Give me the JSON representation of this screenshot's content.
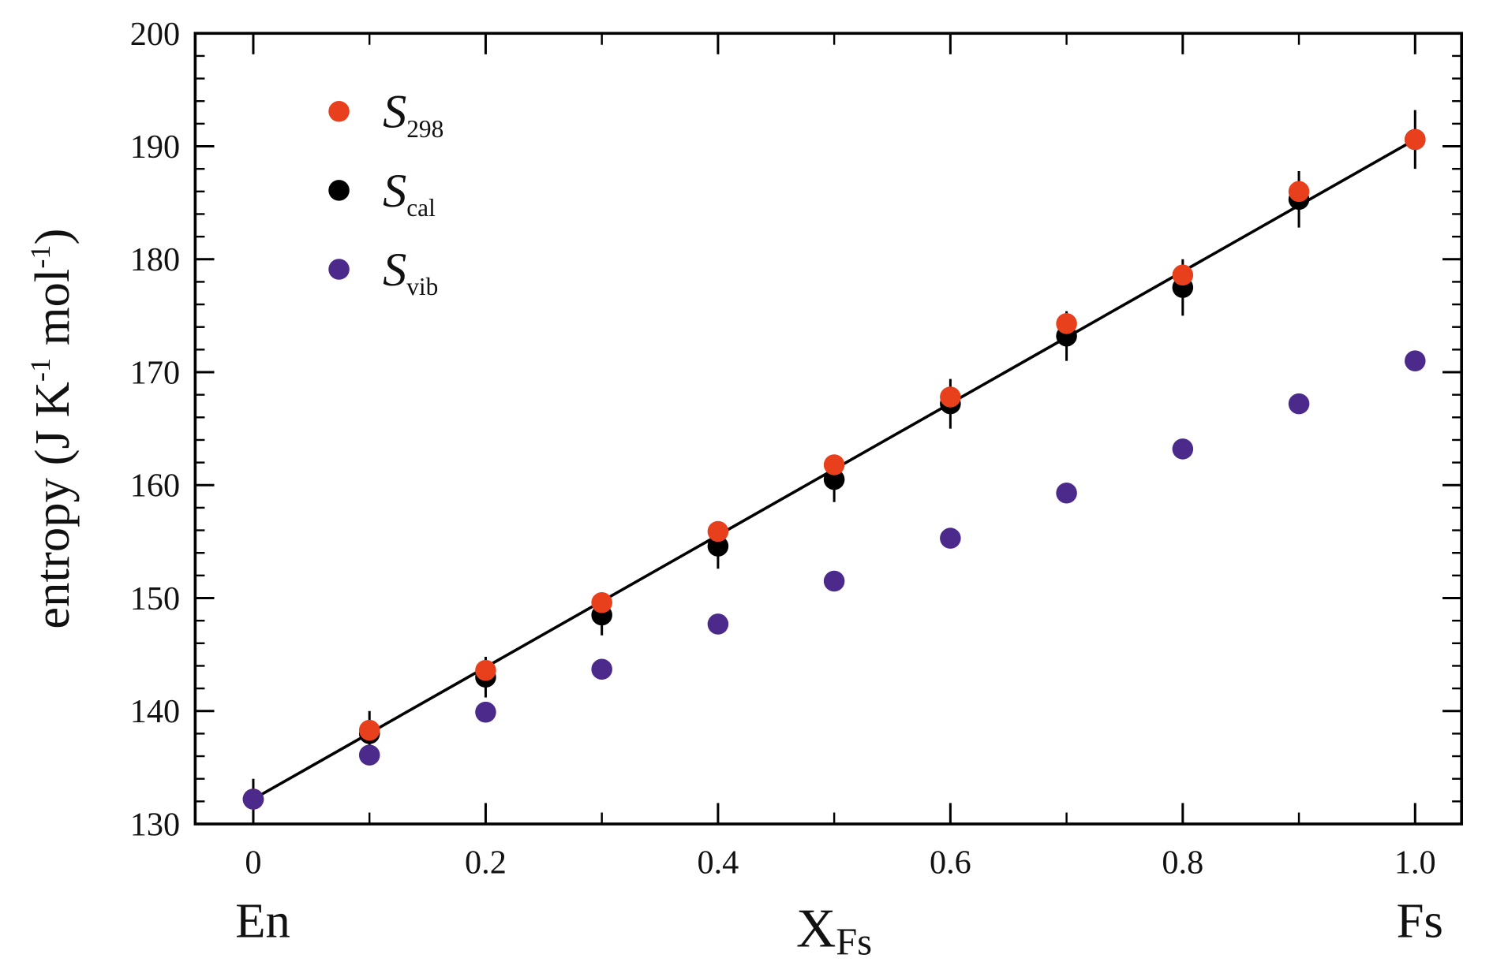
{
  "chart_data": {
    "type": "scatter",
    "ylabel_parts": [
      {
        "text": "entropy (J K"
      },
      {
        "text": "-1",
        "sup": true
      },
      {
        "text": " mol"
      },
      {
        "text": "-1",
        "sup": true
      },
      {
        "text": ")"
      }
    ],
    "xlabel": {
      "main": "X",
      "sub": "Fs"
    },
    "annotations": [
      {
        "text": "En",
        "x": 0
      },
      {
        "text": "Fs",
        "x": 1
      }
    ],
    "x": [
      0,
      0.1,
      0.2,
      0.3,
      0.4,
      0.5,
      0.6,
      0.7,
      0.8,
      0.9,
      1
    ],
    "series": [
      {
        "name": "S",
        "name_sub": "298",
        "color": "#e8401c",
        "values": [
          132.2,
          138.3,
          143.6,
          149.6,
          155.9,
          161.8,
          167.8,
          174.3,
          178.6,
          186.0,
          190.6
        ]
      },
      {
        "name": "S",
        "name_sub": "cal",
        "color": "#000000",
        "values": [
          132.2,
          138.0,
          143.0,
          148.5,
          154.6,
          160.5,
          167.2,
          173.2,
          177.5,
          185.3,
          190.6
        ],
        "errors": [
          1.8,
          2.0,
          1.8,
          1.8,
          2.0,
          2.0,
          2.2,
          2.2,
          2.5,
          2.5,
          2.6
        ]
      },
      {
        "name": "S",
        "name_sub": "vib",
        "color": "#4b2a8c",
        "values": [
          132.2,
          136.1,
          139.9,
          143.7,
          147.7,
          151.5,
          155.3,
          159.3,
          163.2,
          167.2,
          171.0
        ]
      }
    ],
    "fit_line": {
      "x": [
        0,
        1
      ],
      "values": [
        132.2,
        190.6
      ],
      "color": "#000000"
    },
    "xlim": [
      -0.05,
      1.04
    ],
    "ylim": [
      130,
      200
    ],
    "xticks": [
      0,
      0.2,
      0.4,
      0.6,
      0.8,
      {
        "value": 1,
        "label": "1.0"
      }
    ],
    "yticks": [
      130,
      140,
      150,
      160,
      170,
      180,
      190,
      200
    ],
    "xminor_ticks": [
      0.1,
      0.3,
      0.5,
      0.7,
      0.9
    ],
    "yminor_ticks": [
      132,
      134,
      136,
      138,
      142,
      144,
      146,
      148,
      152,
      154,
      156,
      158,
      162,
      164,
      166,
      168,
      172,
      174,
      176,
      178,
      182,
      184,
      186,
      188,
      192,
      194,
      196,
      198
    ],
    "grid": false,
    "legend": "upper left"
  }
}
